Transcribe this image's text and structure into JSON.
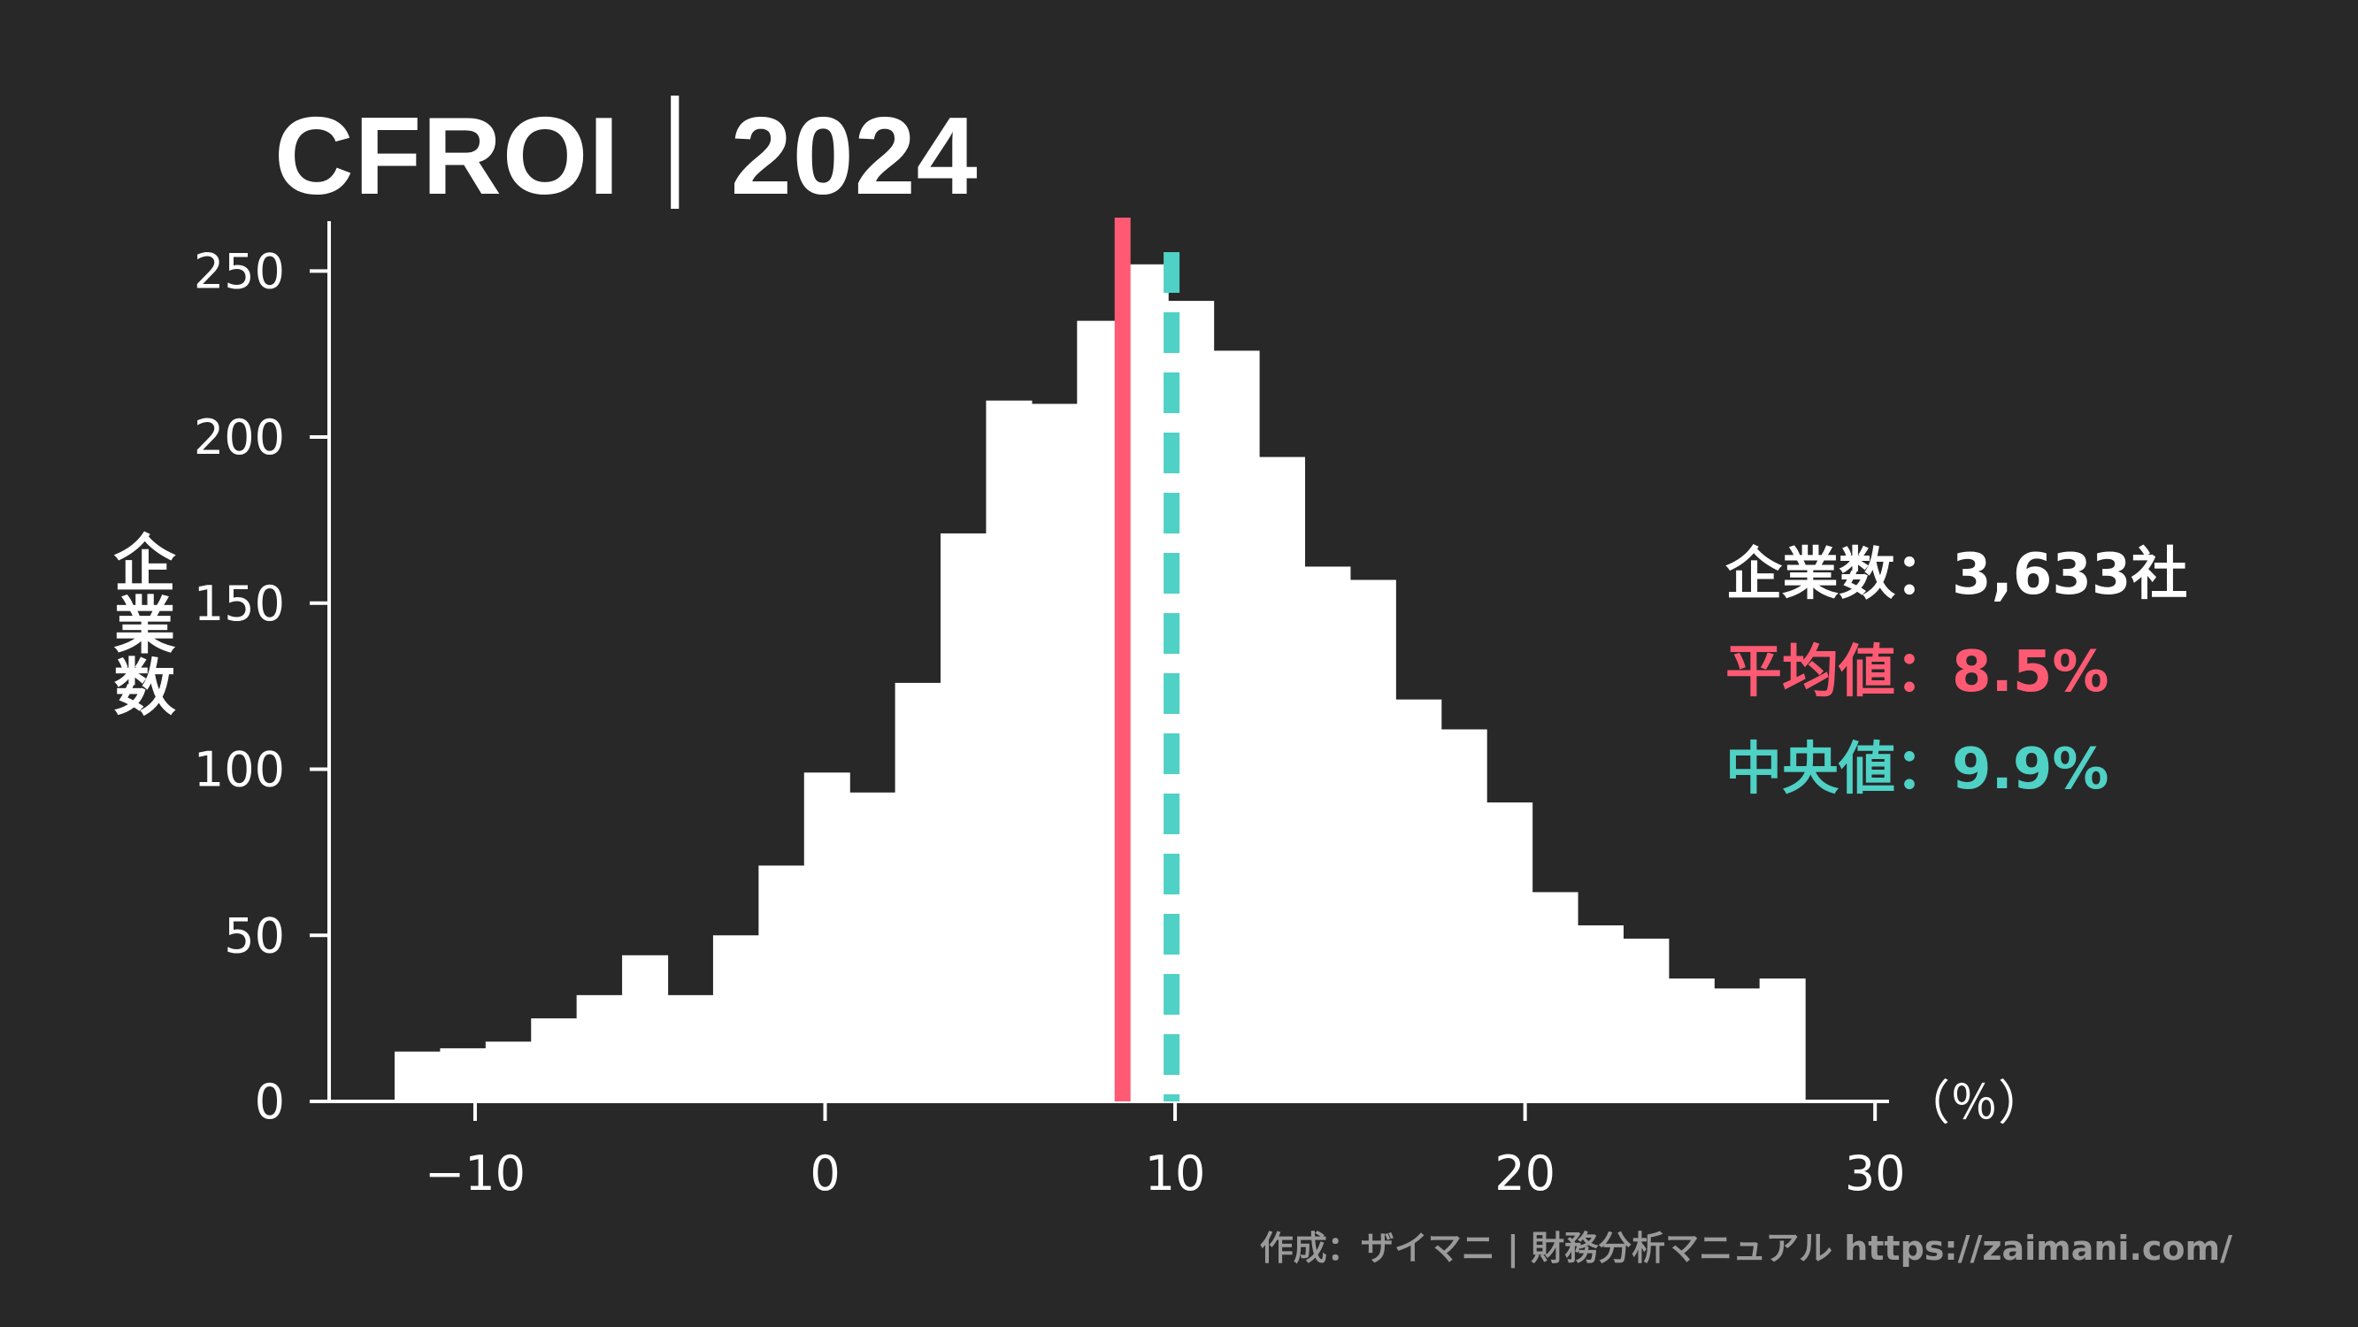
{
  "title": "CFROI｜2024",
  "ylabel": "企業数",
  "stats": {
    "count_label": "企業数",
    "count_value": "3,633社",
    "mean_label": "平均値",
    "mean_value": "8.5%",
    "median_label": "中央値",
    "median_value": "9.9%",
    "separator": "："
  },
  "credit": "作成：ザイマニ | 財務分析マニュアル https://zaimani.com/",
  "colors": {
    "background": "#282828",
    "bars": "#ffffff",
    "mean": "#ff5a73",
    "median": "#4fd1c5",
    "credit": "#9a9a9a"
  },
  "chart_data": {
    "type": "bar",
    "title": "CFROI｜2024",
    "xlabel": "（％）",
    "ylabel": "企業数",
    "xlim": [
      -14.6,
      30.4
    ],
    "ylim": [
      0,
      265
    ],
    "x_ticks": [
      -10,
      0,
      10,
      20,
      30
    ],
    "x_tick_labels": [
      "−10",
      "0",
      "10",
      "20",
      "30"
    ],
    "y_ticks": [
      0,
      50,
      100,
      150,
      200,
      250
    ],
    "bin_width": 1.3,
    "bins": [
      {
        "x0": -12.3,
        "count": 15
      },
      {
        "x0": -11.0,
        "count": 16
      },
      {
        "x0": -9.7,
        "count": 18
      },
      {
        "x0": -8.4,
        "count": 25
      },
      {
        "x0": -7.1,
        "count": 32
      },
      {
        "x0": -5.8,
        "count": 44
      },
      {
        "x0": -4.5,
        "count": 32
      },
      {
        "x0": -3.2,
        "count": 50
      },
      {
        "x0": -1.9,
        "count": 71
      },
      {
        "x0": -0.6,
        "count": 99
      },
      {
        "x0": 0.7,
        "count": 93
      },
      {
        "x0": 2.0,
        "count": 126
      },
      {
        "x0": 3.3,
        "count": 171
      },
      {
        "x0": 4.6,
        "count": 211
      },
      {
        "x0": 5.9,
        "count": 210
      },
      {
        "x0": 7.2,
        "count": 235
      },
      {
        "x0": 8.5,
        "count": 252
      },
      {
        "x0": 9.8,
        "count": 241
      },
      {
        "x0": 11.1,
        "count": 226
      },
      {
        "x0": 12.4,
        "count": 194
      },
      {
        "x0": 13.7,
        "count": 161
      },
      {
        "x0": 15.0,
        "count": 157
      },
      {
        "x0": 16.3,
        "count": 121
      },
      {
        "x0": 17.6,
        "count": 112
      },
      {
        "x0": 18.9,
        "count": 90
      },
      {
        "x0": 20.2,
        "count": 63
      },
      {
        "x0": 21.5,
        "count": 53
      },
      {
        "x0": 22.8,
        "count": 49
      },
      {
        "x0": 24.1,
        "count": 37
      },
      {
        "x0": 25.4,
        "count": 34
      },
      {
        "x0": 26.7,
        "count": 37
      }
    ],
    "mean": 8.5,
    "median": 9.9,
    "grid": false,
    "legend": "none"
  }
}
